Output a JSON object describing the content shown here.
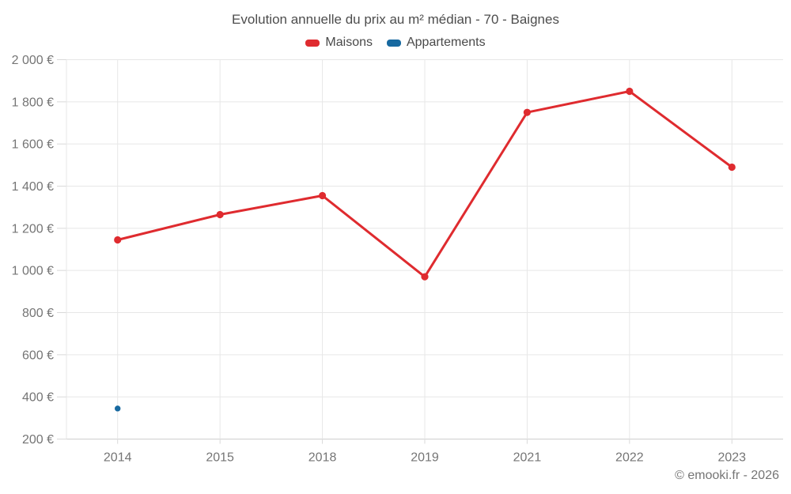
{
  "chart_data": {
    "type": "line",
    "title": "Evolution annuelle du prix au m² médian - 70 - Baignes",
    "categories": [
      "2014",
      "2015",
      "2018",
      "2019",
      "2021",
      "2022",
      "2023"
    ],
    "series": [
      {
        "name": "Maisons",
        "color": "#df2b2f",
        "marker_radius": 4.6,
        "values": [
          1145,
          1265,
          1355,
          970,
          1750,
          1850,
          1490
        ]
      },
      {
        "name": "Appartements",
        "color": "#1769a0",
        "marker_radius": 3.7,
        "values": [
          345,
          null,
          null,
          null,
          null,
          null,
          null
        ]
      }
    ],
    "xlabel": "",
    "ylabel": "",
    "ylim": [
      200,
      2000
    ],
    "ytick_step": 200,
    "ytick_suffix": " €",
    "grid": true,
    "legend_position": "top"
  },
  "footer": {
    "credit": "© emooki.fr - 2026"
  },
  "colors": {
    "title_text": "#4d4d4d",
    "legend_text": "#4a4a4a",
    "axis_text": "#757575",
    "grid_line": "#e7e7e7",
    "tick_line": "#d9d9d9",
    "axis_line": "#cfcfcf",
    "background": "#ffffff"
  }
}
